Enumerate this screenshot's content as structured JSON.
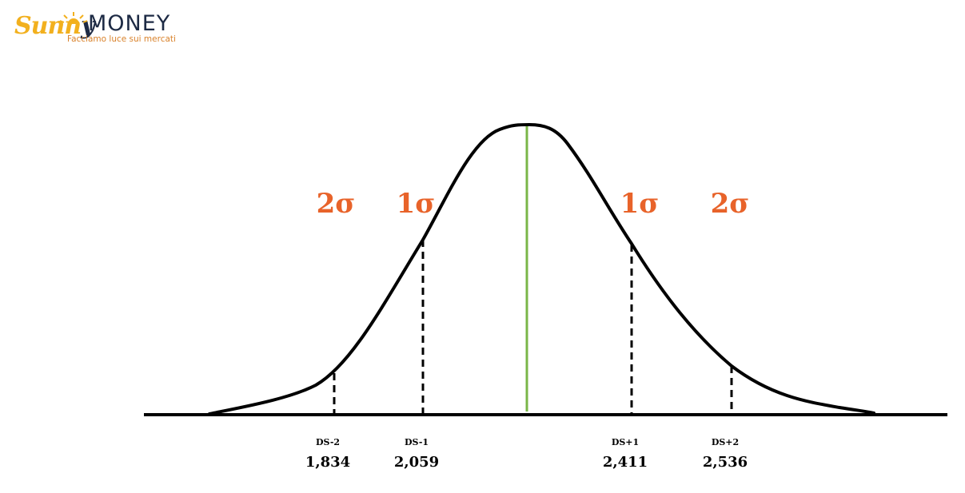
{
  "logo": {
    "script_text_main": "Sunn",
    "script_text_tail": "y",
    "brand": "MONEY",
    "tagline": "Facciamo luce sui mercati"
  },
  "colors": {
    "curve": "#000000",
    "mean_line": "#7ab648",
    "sigma_labels": "#e8632a",
    "logo_navy": "#1d2a44",
    "logo_orange": "#d9822b",
    "logo_yellow": "#f2b01e"
  },
  "chart_data": {
    "type": "area",
    "distribution": "normal",
    "title": "",
    "xlabel": "",
    "ylabel": "",
    "grid": false,
    "markers": [
      {
        "id": "ds-2",
        "label": "DS-2",
        "value": "1,834",
        "x": 1.834,
        "sigma_label": "2σ"
      },
      {
        "id": "ds-1",
        "label": "DS-1",
        "value": "2,059",
        "x": 2.059,
        "sigma_label": "1σ"
      },
      {
        "id": "ds+1",
        "label": "DS+1",
        "value": "2,411",
        "x": 2.411,
        "sigma_label": "1σ"
      },
      {
        "id": "ds+2",
        "label": "DS+2",
        "value": "2,536",
        "x": 2.536,
        "sigma_label": "2σ"
      }
    ]
  }
}
